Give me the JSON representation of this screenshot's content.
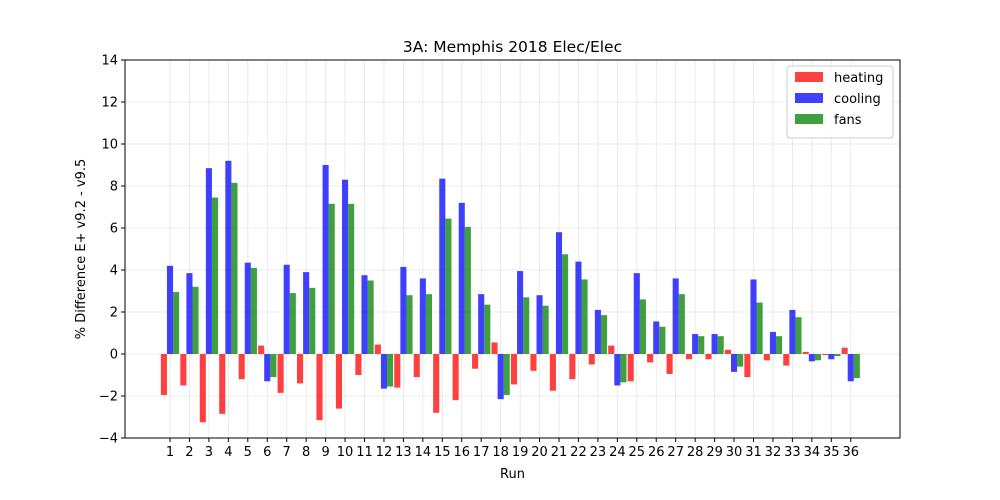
{
  "chart_data": {
    "type": "bar",
    "title": "3A: Memphis 2018 Elec/Elec",
    "xlabel": "Run",
    "ylabel": "% Difference E+ v9.2 - v9.5",
    "ylim": [
      -4,
      14
    ],
    "yticks": [
      -4,
      -2,
      0,
      2,
      4,
      6,
      8,
      10,
      12,
      14
    ],
    "grid": true,
    "legend_position": "top-right",
    "categories": [
      "1",
      "2",
      "3",
      "4",
      "5",
      "6",
      "7",
      "8",
      "9",
      "10",
      "11",
      "12",
      "13",
      "14",
      "15",
      "16",
      "17",
      "18",
      "19",
      "20",
      "21",
      "22",
      "23",
      "24",
      "25",
      "26",
      "27",
      "28",
      "29",
      "30",
      "31",
      "32",
      "33",
      "34",
      "35",
      "36"
    ],
    "series": [
      {
        "name": "heating",
        "color": "#ff0000",
        "values": [
          -1.95,
          -1.5,
          -3.25,
          -2.85,
          -1.2,
          0.4,
          -1.85,
          -1.4,
          -3.15,
          -2.6,
          -1.0,
          0.45,
          -1.6,
          -1.1,
          -2.8,
          -2.2,
          -0.7,
          0.55,
          -1.45,
          -0.8,
          -1.75,
          -1.2,
          -0.5,
          0.4,
          -1.3,
          -0.4,
          -0.95,
          -0.25,
          -0.25,
          0.2,
          -1.1,
          -0.3,
          -0.55,
          0.1,
          -0.05,
          0.3
        ]
      },
      {
        "name": "cooling",
        "color": "#0000ff",
        "values": [
          4.2,
          3.85,
          8.85,
          9.2,
          4.35,
          -1.3,
          4.25,
          3.9,
          9.0,
          8.3,
          3.75,
          -1.65,
          4.15,
          3.6,
          8.35,
          7.2,
          2.85,
          -2.15,
          3.95,
          2.8,
          5.8,
          4.4,
          2.1,
          -1.5,
          3.85,
          1.55,
          3.6,
          0.95,
          0.95,
          -0.85,
          3.55,
          1.05,
          2.1,
          -0.35,
          -0.25,
          -1.3
        ]
      },
      {
        "name": "fans",
        "color": "#008000",
        "values": [
          2.95,
          3.2,
          7.45,
          8.15,
          4.1,
          -1.1,
          2.9,
          3.15,
          7.15,
          7.15,
          3.5,
          -1.55,
          2.8,
          2.85,
          6.45,
          6.05,
          2.35,
          -1.95,
          2.7,
          2.3,
          4.75,
          3.55,
          1.85,
          -1.35,
          2.6,
          1.3,
          2.85,
          0.85,
          0.85,
          -0.6,
          2.45,
          0.85,
          1.75,
          -0.3,
          -0.1,
          -1.15
        ]
      }
    ]
  }
}
